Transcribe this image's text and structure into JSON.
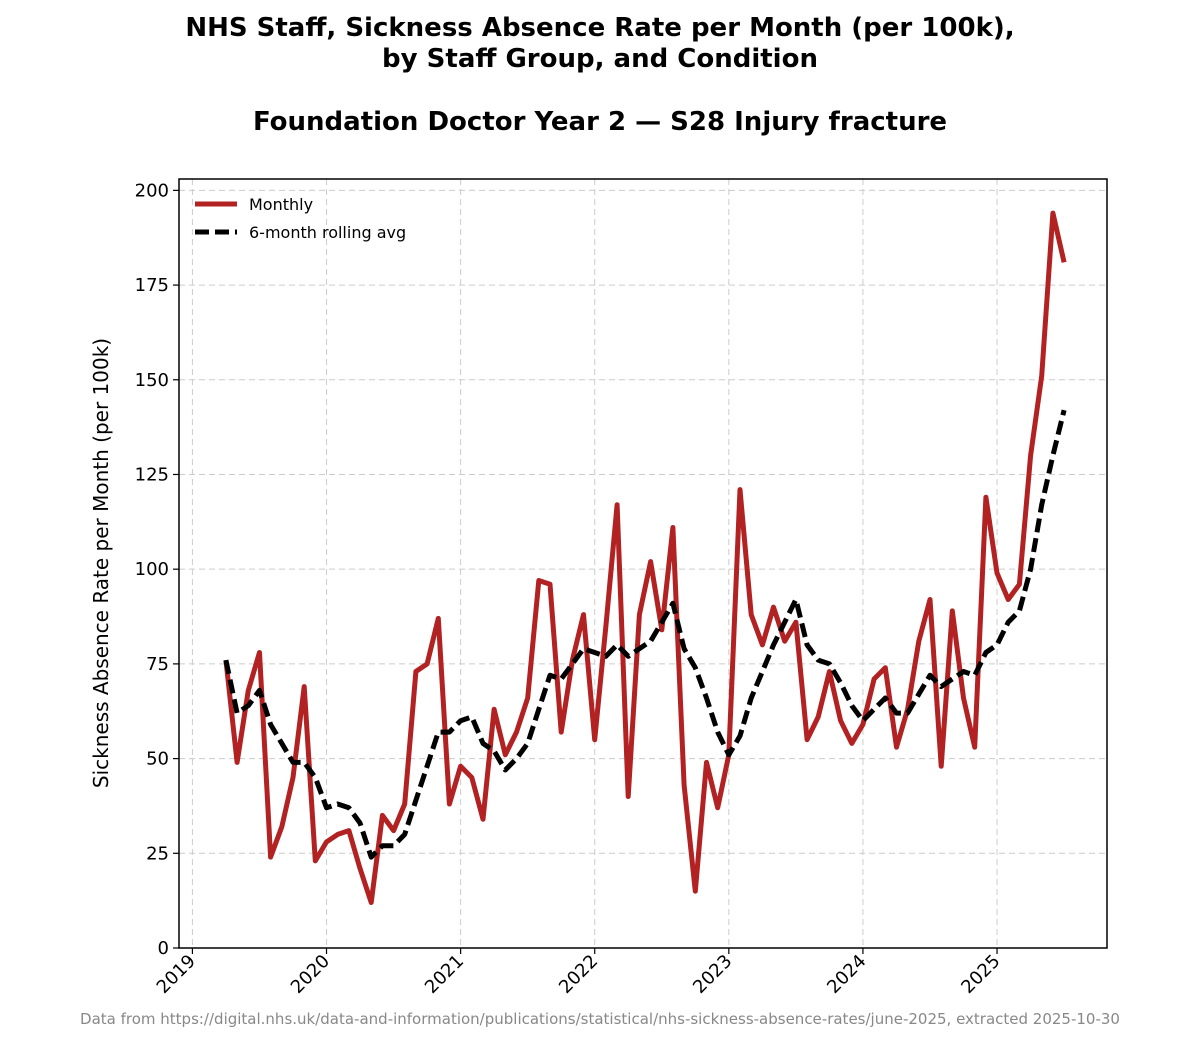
{
  "chart_data": {
    "type": "line",
    "title_lines": [
      "NHS Staff, Sickness Absence Rate per Month (per 100k),",
      "by Staff Group, and Condition"
    ],
    "subtitle": "Foundation Doctor Year 2 — S28 Injury fracture",
    "xlabel": "",
    "ylabel": "Sickness Absence Rate per Month (per 100k)",
    "ylim": [
      0,
      203
    ],
    "yticks": [
      0,
      25,
      50,
      75,
      100,
      125,
      150,
      175,
      200
    ],
    "xlim": [
      2018.9,
      2025.82
    ],
    "xticks": [
      {
        "value": 2019,
        "label": "2019"
      },
      {
        "value": 2020,
        "label": "2020"
      },
      {
        "value": 2021,
        "label": "2021"
      },
      {
        "value": 2022,
        "label": "2022"
      },
      {
        "value": 2023,
        "label": "2023"
      },
      {
        "value": 2024,
        "label": "2024"
      },
      {
        "value": 2025,
        "label": "2025"
      }
    ],
    "grid": true,
    "legend_position": "upper-left",
    "colors": {
      "monthly": "#b22222",
      "rolling": "#000000",
      "grid": "#cccccc",
      "footer": "#888888"
    },
    "start": {
      "year": 2019,
      "month": 4
    },
    "series": [
      {
        "name": "Monthly",
        "style": "solid",
        "values": [
          76,
          49,
          68,
          78,
          24,
          32,
          45,
          69,
          23,
          28,
          30,
          31,
          21,
          12,
          35,
          31,
          38,
          73,
          75,
          87,
          38,
          48,
          45,
          34,
          63,
          51,
          57,
          66,
          97,
          96,
          57,
          76,
          88,
          55,
          85,
          117,
          40,
          88,
          102,
          84,
          111,
          43,
          15,
          49,
          37,
          51,
          121,
          88,
          80,
          90,
          81,
          86,
          55,
          61,
          73,
          60,
          54,
          59,
          71,
          74,
          53,
          63,
          81,
          92,
          48,
          89,
          66,
          53,
          119,
          99,
          92,
          96,
          130,
          151,
          194,
          181
        ]
      },
      {
        "name": "6-month rolling avg",
        "style": "dashed",
        "values": [
          76,
          62,
          64,
          68,
          59,
          54,
          49,
          49,
          45,
          37,
          38,
          37,
          33,
          24,
          27,
          27,
          30,
          39,
          48,
          57,
          57,
          60,
          61,
          54,
          52,
          47,
          50,
          54,
          63,
          72,
          71,
          75,
          79,
          78,
          77,
          80,
          77,
          79,
          81,
          86,
          91,
          79,
          74,
          66,
          57,
          51,
          56,
          66,
          73,
          80,
          86,
          92,
          80,
          76,
          75,
          70,
          64,
          60,
          63,
          66,
          62,
          62,
          67,
          72,
          69,
          71,
          73,
          72,
          78,
          80,
          86,
          89,
          100,
          117,
          130,
          142
        ]
      }
    ]
  },
  "footer": "Data from https://digital.nhs.uk/data-and-information/publications/statistical/nhs-sickness-absence-rates/june-2025, extracted 2025-10-30"
}
